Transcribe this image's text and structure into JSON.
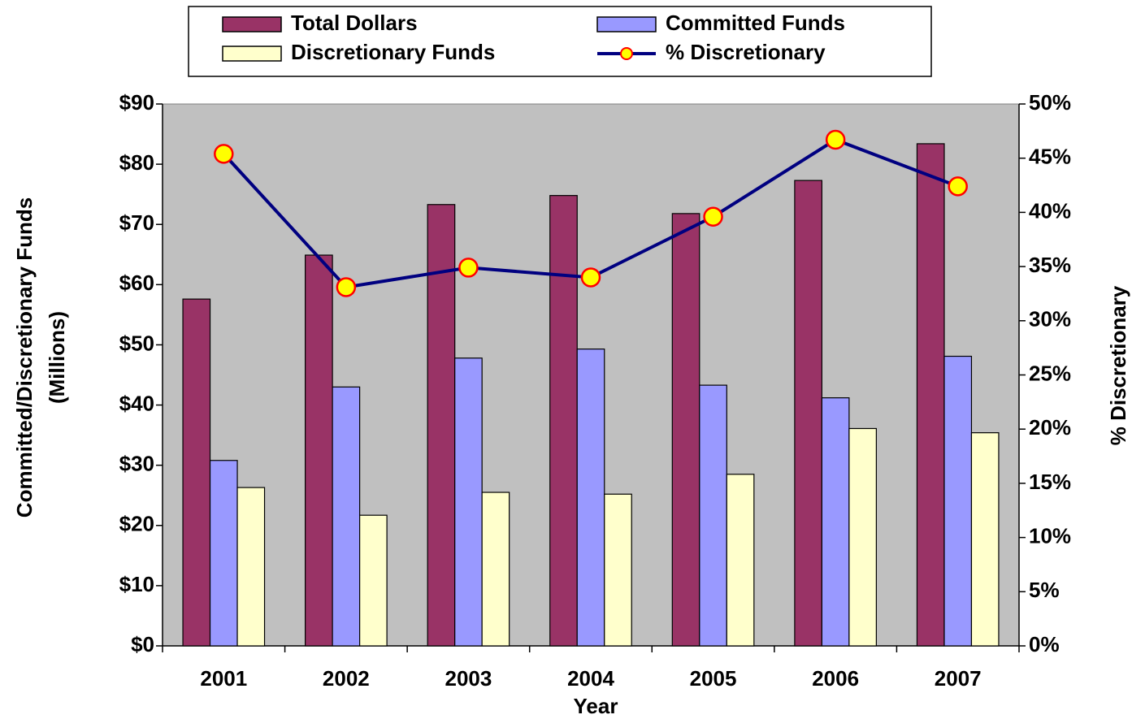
{
  "chart_data": {
    "type": "bar",
    "categories": [
      "2001",
      "2002",
      "2003",
      "2004",
      "2005",
      "2006",
      "2007"
    ],
    "series": [
      {
        "name": "Total Dollars",
        "color": "#993366",
        "values": [
          57.6,
          64.9,
          73.3,
          74.8,
          71.8,
          77.3,
          83.4
        ]
      },
      {
        "name": "Committed Funds",
        "color": "#9999ff",
        "values": [
          30.8,
          43.0,
          47.8,
          49.3,
          43.3,
          41.2,
          48.1
        ]
      },
      {
        "name": "Discretionary Funds",
        "color": "#ffffcc",
        "values": [
          26.3,
          21.7,
          25.5,
          25.2,
          28.5,
          36.1,
          35.4
        ]
      },
      {
        "name": "% Discretionary",
        "type": "line",
        "axis": "y2",
        "color": "#000080",
        "marker_fill": "#ffff00",
        "marker_edge": "#ff0000",
        "values": [
          45.4,
          33.1,
          34.9,
          34.0,
          39.6,
          46.7,
          42.4
        ]
      }
    ],
    "xlabel": "Year",
    "ylabel": [
      "Committed/Discretionary Funds",
      "(Millions)"
    ],
    "y2label": "% Discretionary",
    "ylim": [
      0,
      90
    ],
    "yticks": [
      {
        "value": 0,
        "label": "$0"
      },
      {
        "value": 10,
        "label": "$10"
      },
      {
        "value": 20,
        "label": "$20"
      },
      {
        "value": 30,
        "label": "$30"
      },
      {
        "value": 40,
        "label": "$40"
      },
      {
        "value": 50,
        "label": "$50"
      },
      {
        "value": 60,
        "label": "$60"
      },
      {
        "value": 70,
        "label": "$70"
      },
      {
        "value": 80,
        "label": "$80"
      },
      {
        "value": 90,
        "label": "$90"
      }
    ],
    "y2lim": [
      0,
      50
    ],
    "y2ticks": [
      {
        "value": 0,
        "label": "0%"
      },
      {
        "value": 5,
        "label": "5%"
      },
      {
        "value": 10,
        "label": "10%"
      },
      {
        "value": 15,
        "label": "15%"
      },
      {
        "value": 20,
        "label": "20%"
      },
      {
        "value": 25,
        "label": "25%"
      },
      {
        "value": 30,
        "label": "30%"
      },
      {
        "value": 35,
        "label": "35%"
      },
      {
        "value": 40,
        "label": "40%"
      },
      {
        "value": 45,
        "label": "45%"
      },
      {
        "value": 50,
        "label": "50%"
      }
    ],
    "plot_background": "#c0c0c0",
    "grid": false,
    "legend": "top"
  }
}
